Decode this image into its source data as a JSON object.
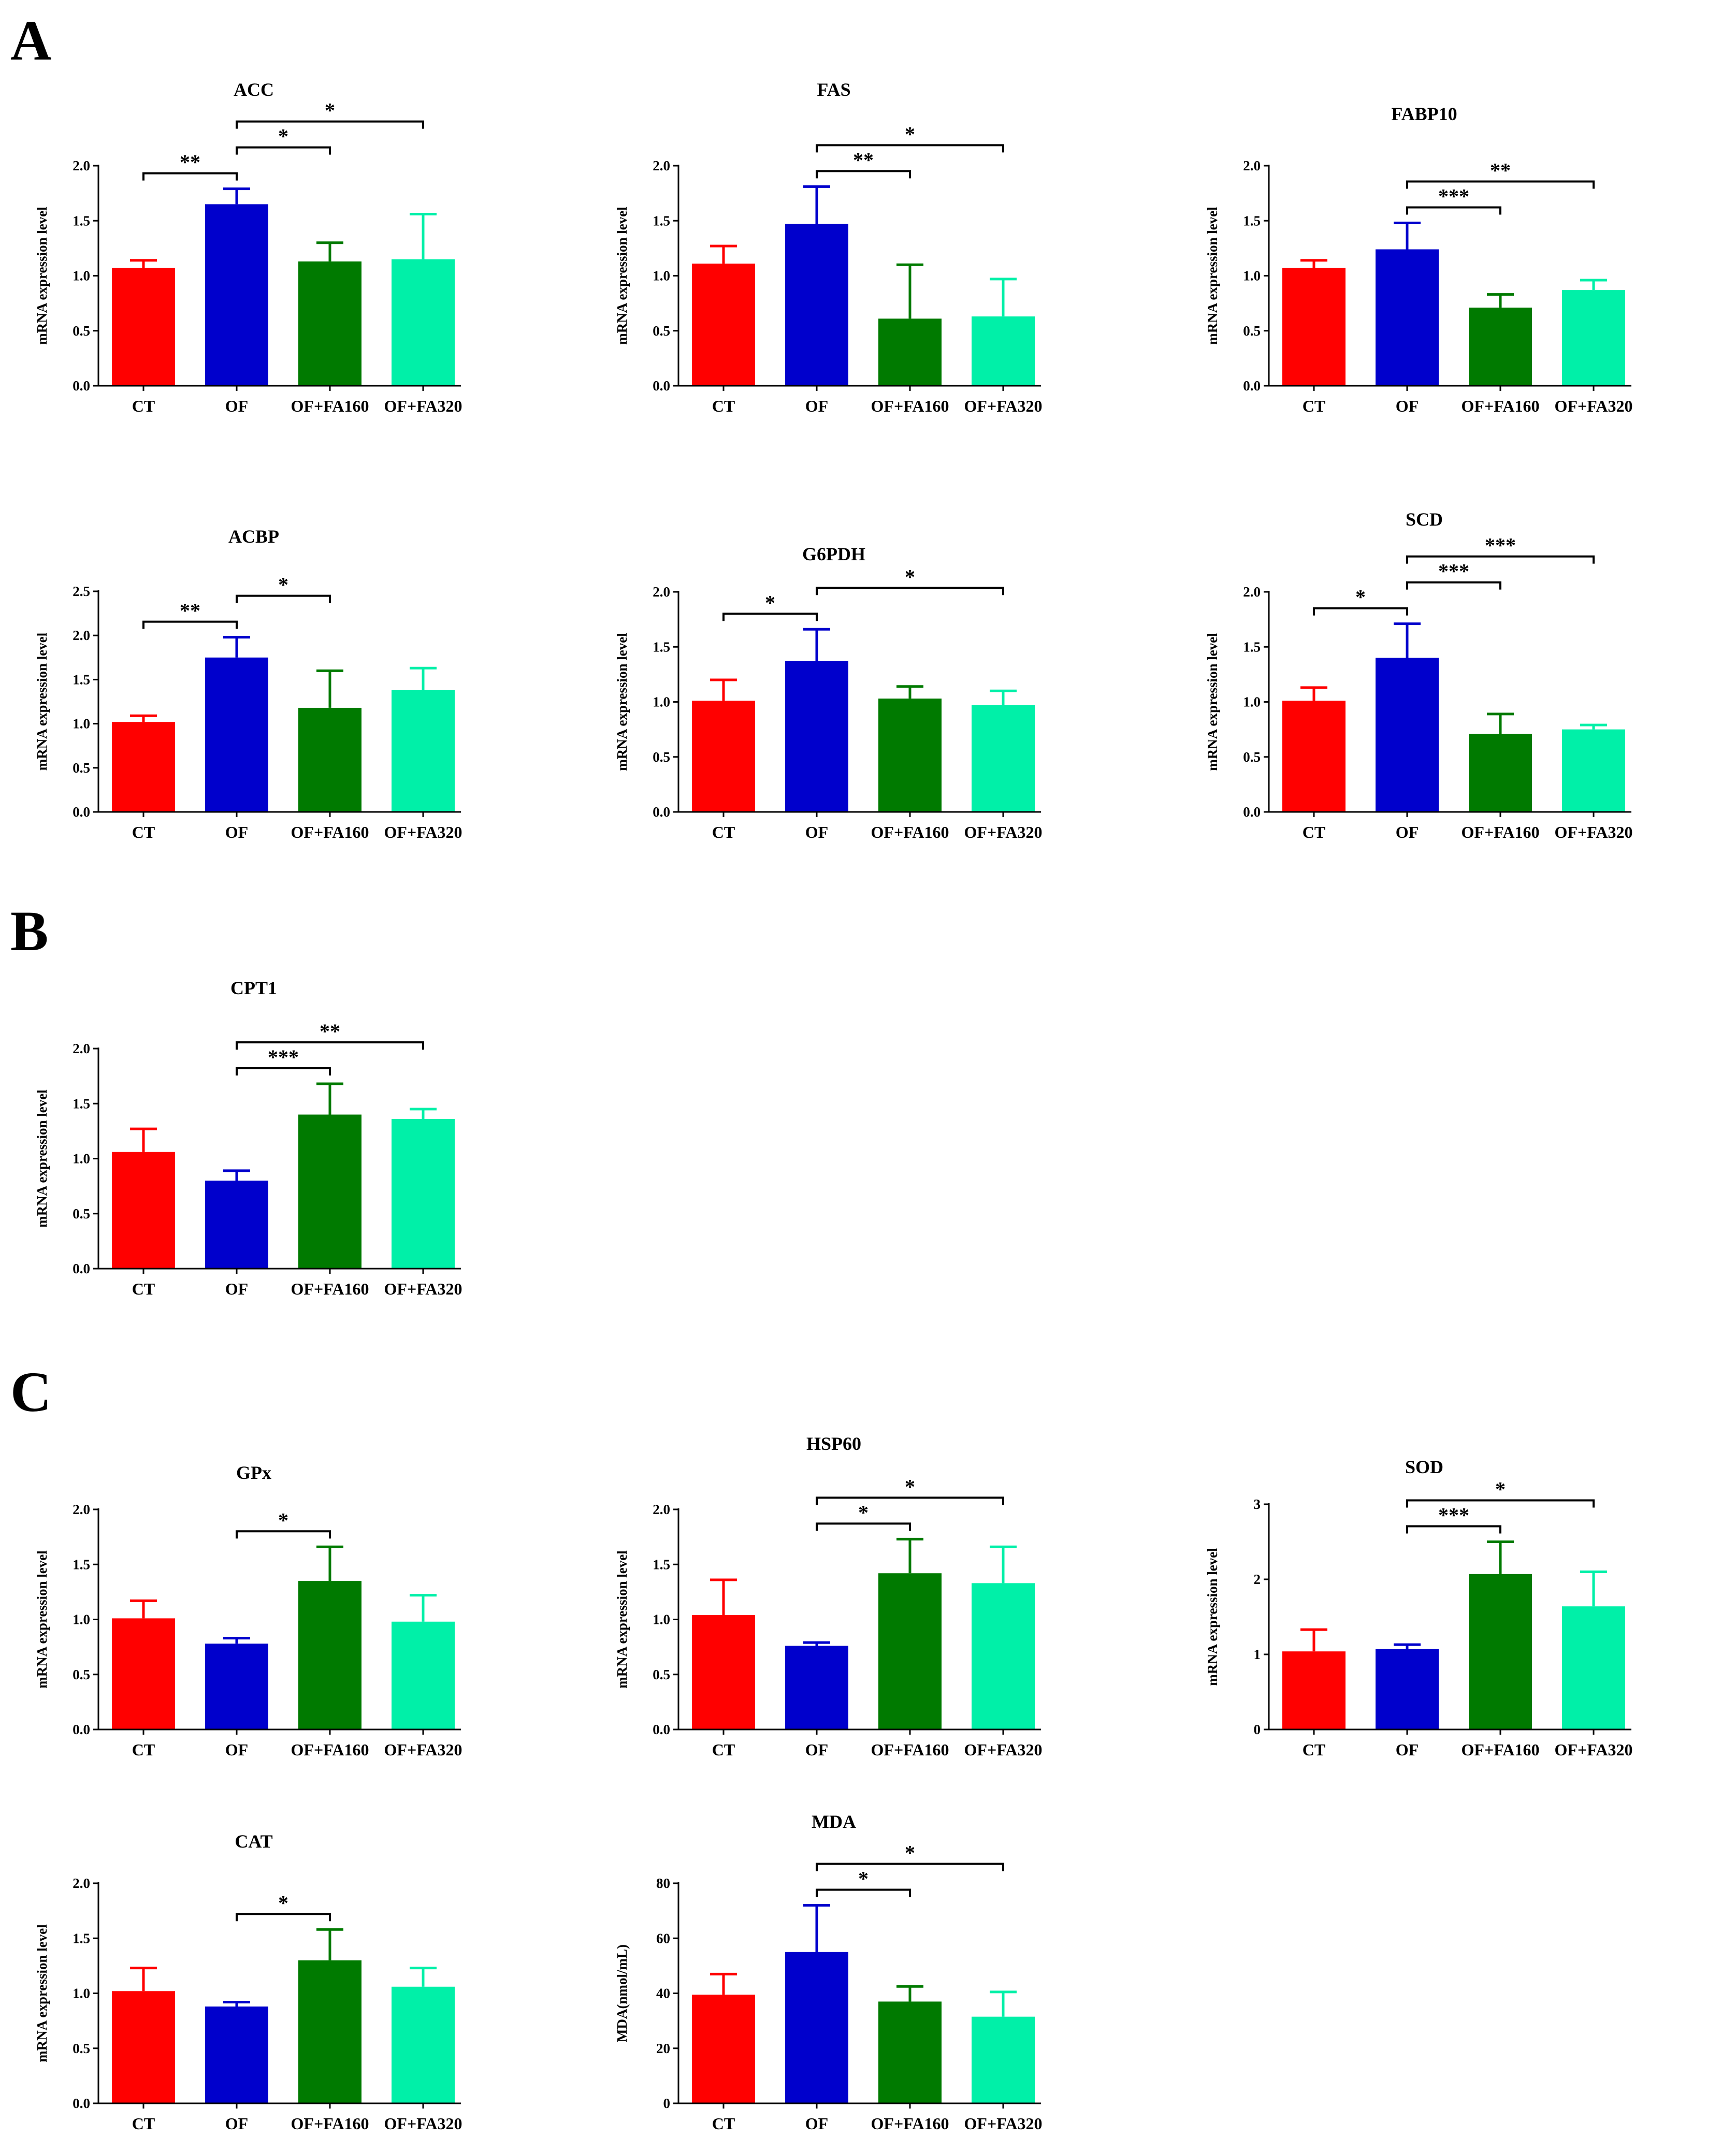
{
  "panel_labels": [
    "A",
    "B",
    "C"
  ],
  "colors": {
    "CT": "#ff0000",
    "OF": "#0000cc",
    "OF+FA160": "#007a00",
    "OF+FA320": "#00f0a8",
    "axis": "#000000"
  },
  "chart_data": [
    {
      "id": "acc",
      "type": "bar",
      "title": "ACC",
      "ylabel": "mRNA expression level",
      "categories": [
        "CT",
        "OF",
        "OF+FA160",
        "OF+FA320"
      ],
      "values": [
        1.07,
        1.65,
        1.13,
        1.15
      ],
      "errors": [
        0.07,
        0.14,
        0.17,
        0.41
      ],
      "ylim": [
        0,
        2.0
      ],
      "ticks": [
        "0.0",
        "0.5",
        "1.0",
        "1.5",
        "2.0"
      ],
      "significance": [
        {
          "from": 0,
          "to": 1,
          "label": "**"
        },
        {
          "from": 1,
          "to": 2,
          "label": "*"
        },
        {
          "from": 1,
          "to": 3,
          "label": "*"
        }
      ]
    },
    {
      "id": "fas",
      "type": "bar",
      "title": "FAS",
      "ylabel": "mRNA expression level",
      "categories": [
        "CT",
        "OF",
        "OF+FA160",
        "OF+FA320"
      ],
      "values": [
        1.11,
        1.47,
        0.61,
        0.63
      ],
      "errors": [
        0.16,
        0.34,
        0.49,
        0.34
      ],
      "ylim": [
        0,
        2.0
      ],
      "ticks": [
        "0.0",
        "0.5",
        "1.0",
        "1.5",
        "2.0"
      ],
      "significance": [
        {
          "from": 1,
          "to": 2,
          "label": "**"
        },
        {
          "from": 1,
          "to": 3,
          "label": "*"
        }
      ]
    },
    {
      "id": "fabp10",
      "type": "bar",
      "title": "FABP10",
      "ylabel": "mRNA expression level",
      "categories": [
        "CT",
        "OF",
        "OF+FA160",
        "OF+FA320"
      ],
      "values": [
        1.07,
        1.24,
        0.71,
        0.87
      ],
      "errors": [
        0.07,
        0.24,
        0.12,
        0.09
      ],
      "ylim": [
        0,
        2.0
      ],
      "ticks": [
        "0.0",
        "0.5",
        "1.0",
        "1.5",
        "2.0"
      ],
      "significance": [
        {
          "from": 1,
          "to": 2,
          "label": "***"
        },
        {
          "from": 1,
          "to": 3,
          "label": "**"
        }
      ]
    },
    {
      "id": "acbp",
      "type": "bar",
      "title": "ACBP",
      "ylabel": "mRNA expression level",
      "categories": [
        "CT",
        "OF",
        "OF+FA160",
        "OF+FA320"
      ],
      "values": [
        1.02,
        1.75,
        1.18,
        1.38
      ],
      "errors": [
        0.07,
        0.23,
        0.42,
        0.25
      ],
      "ylim": [
        0,
        2.5
      ],
      "ticks": [
        "0.0",
        "0.5",
        "1.0",
        "1.5",
        "2.0",
        "2.5"
      ],
      "significance": [
        {
          "from": 0,
          "to": 1,
          "label": "**"
        },
        {
          "from": 1,
          "to": 2,
          "label": "*"
        }
      ]
    },
    {
      "id": "g6pdh",
      "type": "bar",
      "title": "G6PDH",
      "ylabel": "mRNA expression level",
      "categories": [
        "CT",
        "OF",
        "OF+FA160",
        "OF+FA320"
      ],
      "values": [
        1.01,
        1.37,
        1.03,
        0.97
      ],
      "errors": [
        0.19,
        0.29,
        0.11,
        0.13
      ],
      "ylim": [
        0,
        2.0
      ],
      "ticks": [
        "0.0",
        "0.5",
        "1.0",
        "1.5",
        "2.0"
      ],
      "significance": [
        {
          "from": 0,
          "to": 1,
          "label": "*"
        },
        {
          "from": 1,
          "to": 3,
          "label": "*"
        }
      ]
    },
    {
      "id": "scd",
      "type": "bar",
      "title": "SCD",
      "ylabel": "mRNA expression level",
      "categories": [
        "CT",
        "OF",
        "OF+FA160",
        "OF+FA320"
      ],
      "values": [
        1.01,
        1.4,
        0.71,
        0.75
      ],
      "errors": [
        0.12,
        0.31,
        0.18,
        0.04
      ],
      "ylim": [
        0,
        2.0
      ],
      "ticks": [
        "0.0",
        "0.5",
        "1.0",
        "1.5",
        "2.0"
      ],
      "significance": [
        {
          "from": 0,
          "to": 1,
          "label": "*"
        },
        {
          "from": 1,
          "to": 2,
          "label": "***"
        },
        {
          "from": 1,
          "to": 3,
          "label": "***"
        }
      ]
    },
    {
      "id": "cpt1",
      "type": "bar",
      "title": "CPT1",
      "ylabel": "mRNA expression level",
      "categories": [
        "CT",
        "OF",
        "OF+FA160",
        "OF+FA320"
      ],
      "values": [
        1.06,
        0.8,
        1.4,
        1.36
      ],
      "errors": [
        0.21,
        0.09,
        0.28,
        0.09
      ],
      "ylim": [
        0,
        2.0
      ],
      "ticks": [
        "0.0",
        "0.5",
        "1.0",
        "1.5",
        "2.0"
      ],
      "significance": [
        {
          "from": 1,
          "to": 2,
          "label": "***"
        },
        {
          "from": 1,
          "to": 3,
          "label": "**"
        }
      ]
    },
    {
      "id": "gpx",
      "type": "bar",
      "title": "GPx",
      "ylabel": "mRNA expression level",
      "categories": [
        "CT",
        "OF",
        "OF+FA160",
        "OF+FA320"
      ],
      "values": [
        1.01,
        0.78,
        1.35,
        0.98
      ],
      "errors": [
        0.16,
        0.05,
        0.31,
        0.24
      ],
      "ylim": [
        0,
        2.0
      ],
      "ticks": [
        "0.0",
        "0.5",
        "1.0",
        "1.5",
        "2.0"
      ],
      "significance": [
        {
          "from": 1,
          "to": 2,
          "label": "*"
        }
      ]
    },
    {
      "id": "hsp60",
      "type": "bar",
      "title": "HSP60",
      "ylabel": "mRNA expression level",
      "categories": [
        "CT",
        "OF",
        "OF+FA160",
        "OF+FA320"
      ],
      "values": [
        1.04,
        0.76,
        1.42,
        1.33
      ],
      "errors": [
        0.32,
        0.03,
        0.31,
        0.33
      ],
      "ylim": [
        0,
        2.0
      ],
      "ticks": [
        "0.0",
        "0.5",
        "1.0",
        "1.5",
        "2.0"
      ],
      "significance": [
        {
          "from": 1,
          "to": 2,
          "label": "*"
        },
        {
          "from": 1,
          "to": 3,
          "label": "*"
        }
      ]
    },
    {
      "id": "sod",
      "type": "bar",
      "title": "SOD",
      "ylabel": "mRNA expression level",
      "categories": [
        "CT",
        "OF",
        "OF+FA160",
        "OF+FA320"
      ],
      "values": [
        1.04,
        1.07,
        2.07,
        1.64
      ],
      "errors": [
        0.29,
        0.06,
        0.43,
        0.46
      ],
      "ylim": [
        0,
        3
      ],
      "ticks": [
        "0",
        "1",
        "2",
        "3"
      ],
      "significance": [
        {
          "from": 1,
          "to": 2,
          "label": "***"
        },
        {
          "from": 1,
          "to": 3,
          "label": "*"
        }
      ]
    },
    {
      "id": "cat",
      "type": "bar",
      "title": "CAT",
      "ylabel": "mRNA expression level",
      "categories": [
        "CT",
        "OF",
        "OF+FA160",
        "OF+FA320"
      ],
      "values": [
        1.02,
        0.88,
        1.3,
        1.06
      ],
      "errors": [
        0.21,
        0.04,
        0.28,
        0.17
      ],
      "ylim": [
        0,
        2.0
      ],
      "ticks": [
        "0.0",
        "0.5",
        "1.0",
        "1.5",
        "2.0"
      ],
      "significance": [
        {
          "from": 1,
          "to": 2,
          "label": "*"
        }
      ]
    },
    {
      "id": "mda",
      "type": "bar",
      "title": "MDA",
      "ylabel": "MDA(nmol/mL)",
      "categories": [
        "CT",
        "OF",
        "OF+FA160",
        "OF+FA320"
      ],
      "values": [
        39.5,
        55.0,
        37.0,
        31.5
      ],
      "errors": [
        7.5,
        17.0,
        5.5,
        9.0
      ],
      "ylim": [
        0,
        80
      ],
      "ticks": [
        "0",
        "20",
        "40",
        "60",
        "80"
      ],
      "significance": [
        {
          "from": 1,
          "to": 2,
          "label": "*"
        },
        {
          "from": 1,
          "to": 3,
          "label": "*"
        }
      ]
    }
  ]
}
